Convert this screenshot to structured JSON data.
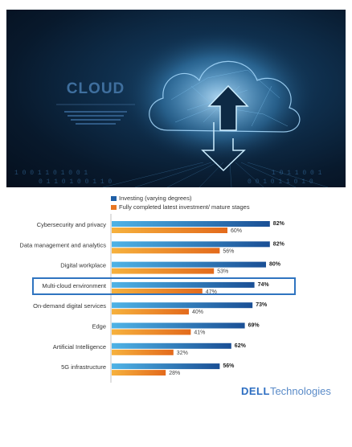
{
  "hero": {
    "title": "CLOUD"
  },
  "legend": {
    "series1": "Investing  (varying degrees)",
    "series2": "Fully completed latest investment/ mature stages"
  },
  "colors": {
    "series1": "#1f5fa6",
    "series2": "#e87722",
    "highlight": "#2f74c0"
  },
  "chart_data": {
    "type": "bar",
    "orientation": "horizontal",
    "categories": [
      "Cybersecurity and privacy",
      "Data management and analytics",
      "Digital workplace",
      "Multi-cloud environment",
      "On-demand digital services",
      "Edge",
      "Artificial Intelligence",
      "5G infrastructure"
    ],
    "series": [
      {
        "name": "Investing  (varying degrees)",
        "values": [
          82,
          82,
          80,
          74,
          73,
          69,
          62,
          56
        ]
      },
      {
        "name": "Fully completed latest investment/ mature stages",
        "values": [
          60,
          56,
          53,
          47,
          40,
          41,
          32,
          28
        ]
      }
    ],
    "value_labels": {
      "series1": [
        "82%",
        "82%",
        "80%",
        "74%",
        "73%",
        "69%",
        "62%",
        "56%"
      ],
      "series2": [
        "60%",
        "56%",
        "53%",
        "47%",
        "40%",
        "41%",
        "32%",
        "28%"
      ]
    },
    "highlighted_category": "Multi-cloud environment",
    "xlim": [
      0,
      100
    ],
    "legend": "top"
  },
  "logo": {
    "brand": "DELL",
    "suffix": "Technologies"
  }
}
